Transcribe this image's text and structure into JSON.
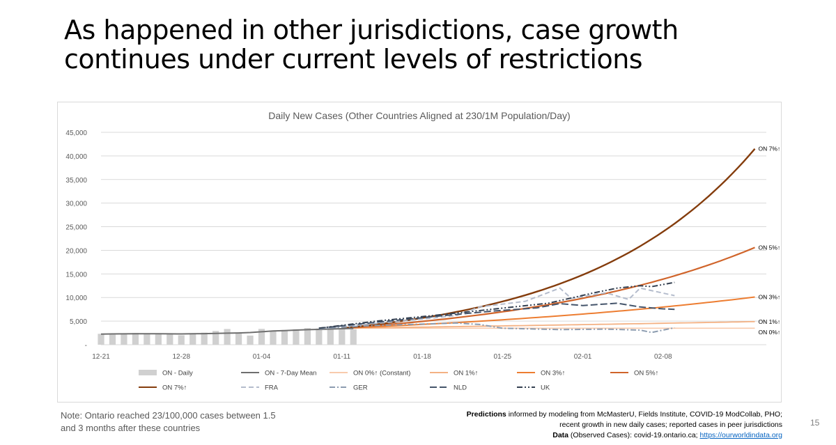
{
  "slide": {
    "title_line1": "As happened in other jurisdictions, case growth",
    "title_line2": "continues under current levels of restrictions",
    "note_line1": "Note: Ontario reached 23/100,000 cases between 1.5",
    "note_line2": "and 3 months after these countries",
    "credits": {
      "predictions_bold": "Predictions",
      "predictions_text": " informed by modeling from McMasterU, Fields Institute, COVID-19 ModCollab, PHO;",
      "line2": "recent growth in new daily cases; reported cases in peer jurisdictions",
      "data_bold": "Data",
      "data_text": " (Observed Cases): covid-19.ontario.ca; ",
      "link": "https://ourworldindata.org"
    },
    "page_number": "15"
  },
  "chart_data": {
    "type": "line",
    "title": "Daily New Cases (Other Countries Aligned at 230/1M Population/Day)",
    "xlabel": "",
    "ylabel": "",
    "ylim": [
      0,
      45000
    ],
    "yticks": [
      0,
      5000,
      10000,
      15000,
      20000,
      25000,
      30000,
      35000,
      40000,
      45000
    ],
    "ytick_labels": [
      "-",
      "5,000",
      "10,000",
      "15,000",
      "20,000",
      "25,000",
      "30,000",
      "35,000",
      "40,000",
      "45,000"
    ],
    "x_domain": [
      "2020-12-21",
      "2021-02-17"
    ],
    "x_ticks": [
      "2020-12-21",
      "2020-12-28",
      "2021-01-04",
      "2021-01-11",
      "2021-01-18",
      "2021-01-25",
      "2021-02-01",
      "2021-02-08"
    ],
    "x_tick_labels": [
      "12-21",
      "12-28",
      "01-04",
      "01-11",
      "01-18",
      "01-25",
      "02-01",
      "02-08"
    ],
    "grid": "horizontal",
    "legend_position": "bottom",
    "colors": {
      "on_daily": "#d0d0d0",
      "on_mean": "#6e6e6e",
      "on0": "#f8cbad",
      "on1": "#f4b183",
      "on3": "#ed7d31",
      "on5": "#d0642a",
      "on7": "#843c0c",
      "fra": "#b4bccc",
      "ger": "#8c9cb0",
      "nld": "#44546a",
      "uk": "#333f50"
    },
    "series": [
      {
        "key": "on_daily",
        "name": "ON - Daily",
        "kind": "bar",
        "start": "2020-12-21",
        "values": [
          2316,
          2123,
          2408,
          2494,
          2447,
          2290,
          2326,
          2005,
          2311,
          2553,
          2923,
          3328,
          2476,
          1939,
          3363,
          2964,
          3128,
          3266,
          3519,
          3443,
          3945,
          3338,
          3270
        ]
      },
      {
        "key": "on_mean",
        "name": "ON - 7-Day Mean",
        "kind": "line",
        "start": "2020-12-21",
        "values": [
          2250,
          2280,
          2300,
          2310,
          2320,
          2315,
          2300,
          2290,
          2310,
          2340,
          2400,
          2450,
          2500,
          2580,
          2750,
          2900,
          3000,
          3100,
          3180,
          3250,
          3320,
          3400,
          3450
        ]
      },
      {
        "key": "on0",
        "name": "ON 0%↑ (Constant)",
        "kind": "projection",
        "start": "2021-01-11",
        "end": "2021-02-16",
        "v0": 3500,
        "v1": 3500
      },
      {
        "key": "on1",
        "name": "ON 1%↑",
        "kind": "projection",
        "start": "2021-01-11",
        "end": "2021-02-16",
        "v0": 3500,
        "v1": 4900
      },
      {
        "key": "on3",
        "name": "ON 3%↑",
        "kind": "projection",
        "start": "2021-01-11",
        "end": "2021-02-16",
        "v0": 3500,
        "v1": 10100
      },
      {
        "key": "on5",
        "name": "ON 5%↑",
        "kind": "projection",
        "start": "2021-01-11",
        "end": "2021-02-16",
        "v0": 3500,
        "v1": 20600
      },
      {
        "key": "on7",
        "name": "ON 7%↑",
        "kind": "projection",
        "start": "2021-01-11",
        "end": "2021-02-16",
        "v0": 3500,
        "v1": 41500
      },
      {
        "key": "fra",
        "name": "FRA",
        "kind": "dash",
        "points": [
          [
            "2021-01-09",
            3400
          ],
          [
            "2021-01-13",
            4300
          ],
          [
            "2021-01-17",
            5200
          ],
          [
            "2021-01-21",
            6200
          ],
          [
            "2021-01-23",
            8000
          ],
          [
            "2021-01-27",
            9200
          ],
          [
            "2021-01-30",
            12000
          ],
          [
            "2021-01-31",
            9800
          ],
          [
            "2021-02-03",
            11000
          ],
          [
            "2021-02-05",
            9600
          ],
          [
            "2021-02-06",
            12000
          ],
          [
            "2021-02-09",
            10400
          ]
        ]
      },
      {
        "key": "ger",
        "name": "GER",
        "kind": "dashdot",
        "points": [
          [
            "2021-01-09",
            3400
          ],
          [
            "2021-01-13",
            4000
          ],
          [
            "2021-01-17",
            4300
          ],
          [
            "2021-01-21",
            4600
          ],
          [
            "2021-01-23",
            4300
          ],
          [
            "2021-01-25",
            3500
          ],
          [
            "2021-01-30",
            3200
          ],
          [
            "2021-02-03",
            3300
          ],
          [
            "2021-02-06",
            3100
          ],
          [
            "2021-02-07",
            2600
          ],
          [
            "2021-02-09",
            3600
          ]
        ]
      },
      {
        "key": "nld",
        "name": "NLD",
        "kind": "longdash",
        "points": [
          [
            "2021-01-09",
            3500
          ],
          [
            "2021-01-15",
            5000
          ],
          [
            "2021-01-20",
            6200
          ],
          [
            "2021-01-24",
            7100
          ],
          [
            "2021-01-28",
            7800
          ],
          [
            "2021-01-30",
            8700
          ],
          [
            "2021-02-01",
            8300
          ],
          [
            "2021-02-04",
            8800
          ],
          [
            "2021-02-06",
            8000
          ],
          [
            "2021-02-08",
            7600
          ],
          [
            "2021-02-09",
            7500
          ]
        ]
      },
      {
        "key": "uk",
        "name": "UK",
        "kind": "dashdotdot",
        "points": [
          [
            "2021-01-09",
            3500
          ],
          [
            "2021-01-14",
            5000
          ],
          [
            "2021-01-19",
            6200
          ],
          [
            "2021-01-24",
            7500
          ],
          [
            "2021-01-29",
            8800
          ],
          [
            "2021-02-02",
            11000
          ],
          [
            "2021-02-04",
            12000
          ],
          [
            "2021-02-06",
            12500
          ],
          [
            "2021-02-07",
            12300
          ],
          [
            "2021-02-09",
            13200
          ]
        ]
      }
    ],
    "end_labels": [
      {
        "series": "on7",
        "text": "ON 7%↑"
      },
      {
        "series": "on5",
        "text": "ON 5%↑"
      },
      {
        "series": "on3",
        "text": "ON 3%↑"
      },
      {
        "series": "on1",
        "text": "ON 1%↑"
      },
      {
        "series": "on0",
        "text": "ON 0%↑"
      }
    ]
  }
}
